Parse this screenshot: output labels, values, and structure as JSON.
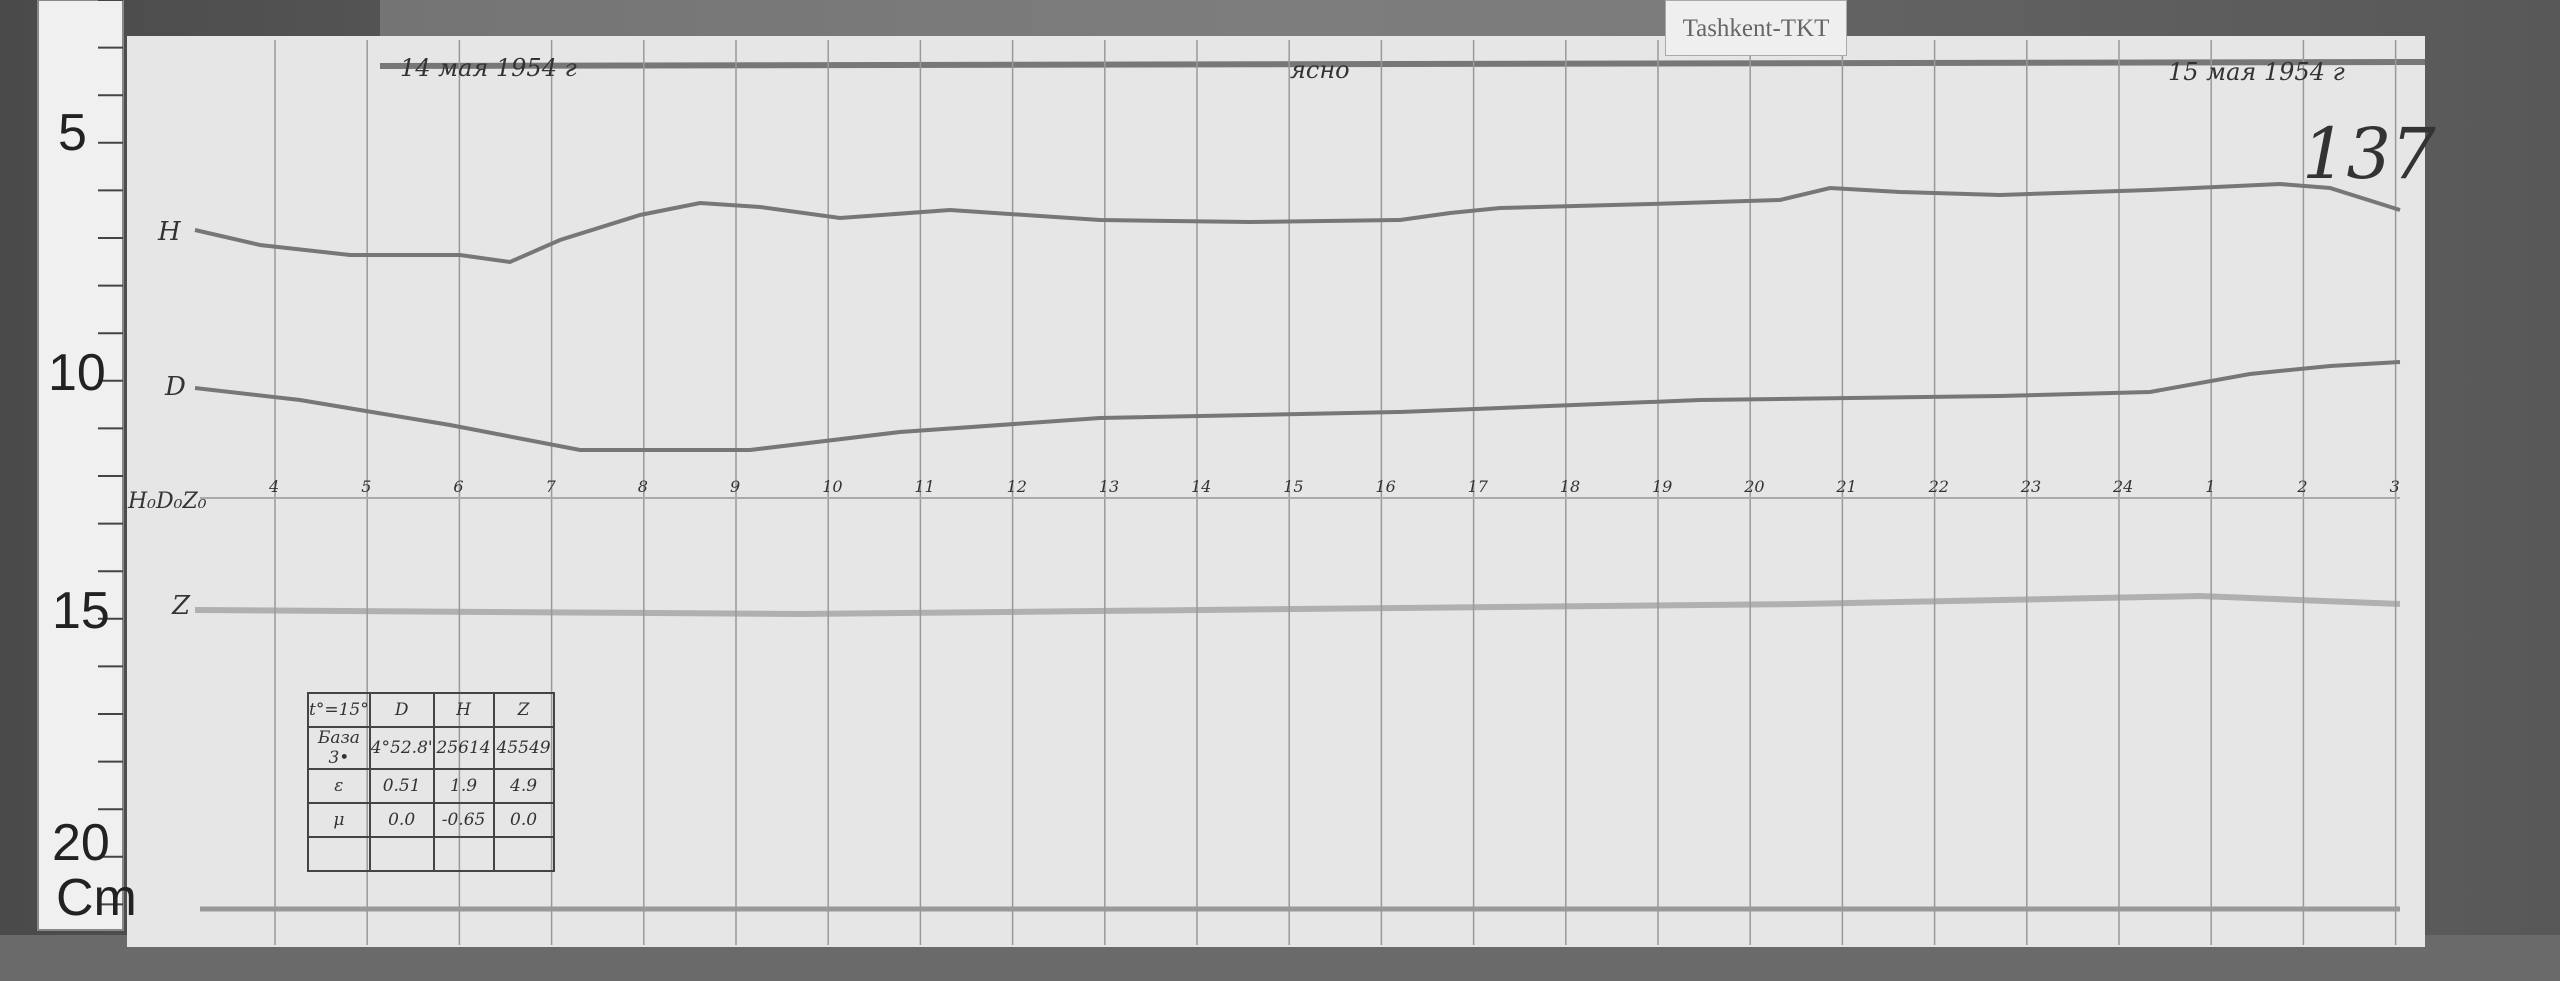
{
  "station_label": "Tashkent-TKT",
  "sheet_number": "137",
  "date_start": "14 мая 1954 г",
  "date_end": "15 мая 1954 г",
  "note": "ясно",
  "ruler": {
    "marks": [
      "5",
      "10",
      "15",
      "20"
    ],
    "unit": "Cm"
  },
  "trace_labels": {
    "H": "H",
    "D": "D",
    "Z": "Z",
    "baseline": "H₀D₀Z₀"
  },
  "hour_ticks": [
    "4",
    "5",
    "6",
    "7",
    "8",
    "9",
    "10",
    "11",
    "12",
    "13",
    "14",
    "15",
    "16",
    "17",
    "18",
    "19",
    "20",
    "21",
    "22",
    "23",
    "24",
    "1",
    "2",
    "3"
  ],
  "table": {
    "header": [
      "t°=15°",
      "D",
      "H",
      "Z"
    ],
    "rows": [
      [
        "База 3•",
        "4°52.8'",
        "25614",
        "45549"
      ],
      [
        "ε",
        "0.51",
        "1.9",
        "4.9"
      ],
      [
        "μ",
        "0.0",
        "-0.65",
        "0.0"
      ],
      [
        "",
        "",
        "",
        ""
      ]
    ]
  },
  "colors": {
    "paper": "#e6e6e6",
    "trace": "#6e6e6e",
    "background": "#555555"
  }
}
